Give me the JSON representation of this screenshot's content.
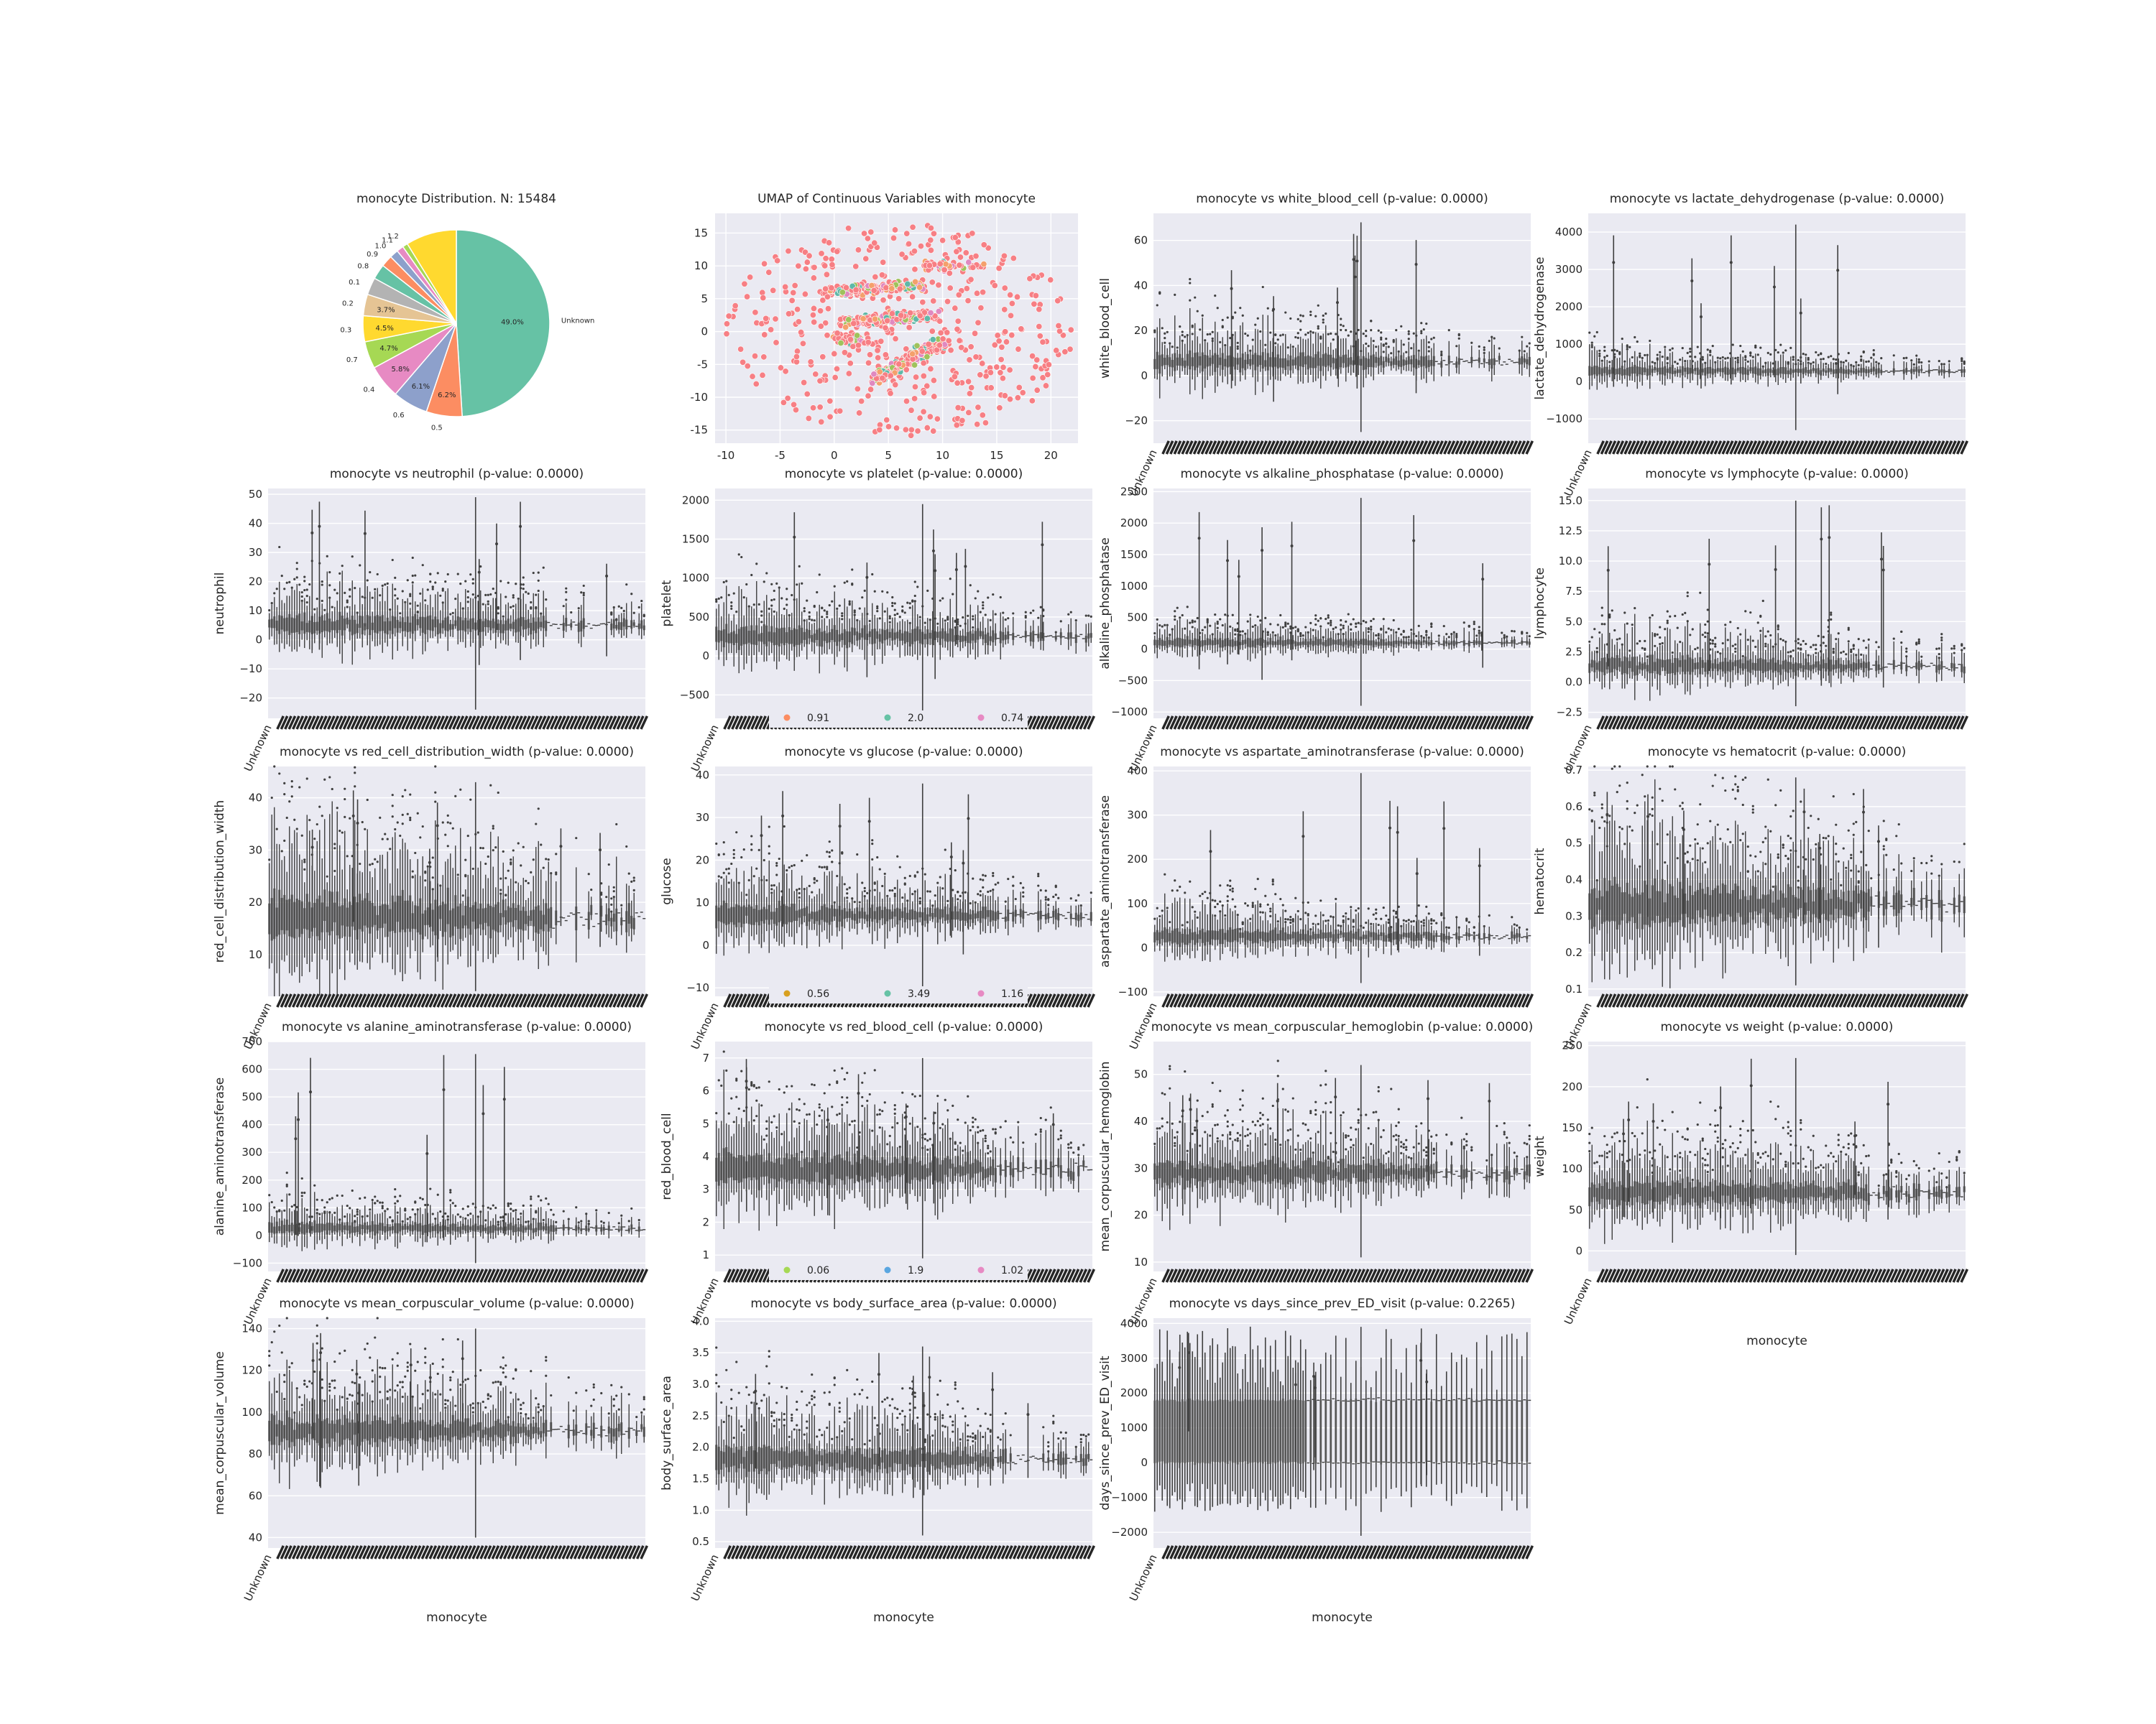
{
  "chart_data": [
    {
      "type": "pie",
      "title": "monocyte Distribution. N: 15484",
      "slices": [
        {
          "label": "Unknown",
          "value": 49.0,
          "pct_label": "49.0%",
          "color": "#66c2a5"
        },
        {
          "label": "0.5",
          "value": 6.2,
          "pct_label": "6.2%",
          "color": "#fc8d62"
        },
        {
          "label": "0.6",
          "value": 6.1,
          "pct_label": "6.1%",
          "color": "#8da0cb"
        },
        {
          "label": "0.4",
          "value": 5.8,
          "pct_label": "5.8%",
          "color": "#e78ac3"
        },
        {
          "label": "0.7",
          "value": 4.7,
          "pct_label": "4.7%",
          "color": "#a6d854"
        },
        {
          "label": "0.3",
          "value": 4.5,
          "pct_label": "4.5%",
          "color": "#ffd92f"
        },
        {
          "label": "0.2",
          "value": 3.7,
          "pct_label": "3.7%",
          "color": "#e5c494"
        },
        {
          "label": "0.1",
          "value": 3.0,
          "pct_label": "",
          "color": "#b3b3b3"
        },
        {
          "label": "0.8",
          "value": 2.6,
          "pct_label": "",
          "color": "#66c2a5"
        },
        {
          "label": "0.9",
          "value": 2.0,
          "pct_label": "",
          "color": "#fc8d62"
        },
        {
          "label": "1.0",
          "value": 1.5,
          "pct_label": "",
          "color": "#8da0cb"
        },
        {
          "label": "1.1",
          "value": 1.2,
          "pct_label": "",
          "color": "#e78ac3"
        },
        {
          "label": "1.2",
          "value": 0.9,
          "pct_label": "",
          "color": "#a6d854"
        },
        {
          "label": "",
          "value": 8.8,
          "pct_label": "",
          "color": "#ffd92f"
        }
      ]
    },
    {
      "type": "scatter",
      "title": "UMAP of Continuous Variables with monocyte",
      "xlim": [
        -11,
        22.5
      ],
      "ylim": [
        -17,
        18
      ],
      "xticks": [
        -10,
        -5,
        0,
        5,
        10,
        15,
        20
      ],
      "yticks": [
        -15,
        -10,
        -5,
        0,
        5,
        10,
        15
      ],
      "legend_rows": [
        {
          "values": [
            "0.91",
            "2.0",
            "0.74"
          ],
          "colors": [
            "#fc8d62",
            "#66c2a5",
            "#e78ac3"
          ]
        },
        {
          "values": [
            "0.56",
            "3.49",
            "1.16"
          ],
          "colors": [
            "#d8a020",
            "#66c2a5",
            "#e78ac3"
          ]
        },
        {
          "values": [
            "0.06",
            "1.9",
            "1.02"
          ],
          "colors": [
            "#a6d854",
            "#5aa6e0",
            "#e78ac3"
          ]
        }
      ],
      "colors": [
        "#f77f84",
        "#f4a06c",
        "#9fc25c",
        "#5fb8a8",
        "#e089c0"
      ]
    },
    {
      "type": "box",
      "title": "monocyte vs white_blood_cell (p-value: 0.0000)",
      "ylabel": "white_blood_cell",
      "xlabel": "",
      "ylim": [
        -30,
        72
      ],
      "yticks": [
        -20,
        0,
        20,
        40,
        60
      ],
      "yticklabels": [
        "−20",
        "0",
        "20",
        "40",
        "60"
      ],
      "center": 6,
      "spread": 5,
      "outlier_max": 68,
      "outlier_min": -25,
      "first_tick": "Unknown"
    },
    {
      "type": "box",
      "title": "monocyte vs lactate_dehydrogenase (p-value: 0.0000)",
      "ylabel": "lactate_dehydrogenase",
      "xlabel": "",
      "ylim": [
        -1650,
        4500
      ],
      "yticks": [
        -1000,
        0,
        1000,
        2000,
        3000,
        4000
      ],
      "yticklabels": [
        "−1000",
        "0",
        "1000",
        "2000",
        "3000",
        "4000"
      ],
      "center": 280,
      "spread": 150,
      "outlier_max": 4200,
      "outlier_min": -1300,
      "first_tick": "Unknown"
    },
    {
      "type": "box",
      "title": "monocyte vs neutrophil (p-value: 0.0000)",
      "ylabel": "neutrophil",
      "xlabel": "",
      "ylim": [
        -27,
        52
      ],
      "yticks": [
        -20,
        -10,
        0,
        10,
        20,
        30,
        40,
        50
      ],
      "yticklabels": [
        "−20",
        "−10",
        "0",
        "10",
        "20",
        "30",
        "40",
        "50"
      ],
      "center": 5,
      "spread": 4,
      "outlier_max": 49,
      "outlier_min": -24,
      "first_tick": "Unknown"
    },
    {
      "type": "box",
      "title": "monocyte vs platelet (p-value: 0.0000)",
      "ylabel": "platelet",
      "xlabel": "",
      "ylim": [
        -800,
        2150
      ],
      "yticks": [
        -500,
        0,
        500,
        1000,
        1500,
        2000
      ],
      "yticklabels": [
        "−500",
        "0",
        "500",
        "1000",
        "1500",
        "2000"
      ],
      "center": 250,
      "spread": 150,
      "outlier_max": 1950,
      "outlier_min": -700,
      "first_tick": "Unknown"
    },
    {
      "type": "box",
      "title": "monocyte vs alkaline_phosphatase (p-value: 0.0000)",
      "ylabel": "alkaline_phosphatase",
      "xlabel": "",
      "ylim": [
        -1100,
        2550
      ],
      "yticks": [
        -1000,
        -500,
        0,
        500,
        1000,
        1500,
        2000,
        2500
      ],
      "yticklabels": [
        "−1000",
        "−500",
        "0",
        "500",
        "1000",
        "1500",
        "2000",
        "2500"
      ],
      "center": 100,
      "spread": 90,
      "outlier_max": 2400,
      "outlier_min": -900,
      "first_tick": "Unknown"
    },
    {
      "type": "box",
      "title": "monocyte vs lymphocyte (p-value: 0.0000)",
      "ylabel": "lymphocyte",
      "xlabel": "",
      "ylim": [
        -3,
        16
      ],
      "yticks": [
        -2.5,
        0.0,
        2.5,
        5.0,
        7.5,
        10.0,
        12.5,
        15.0
      ],
      "yticklabels": [
        "−2.5",
        "0.0",
        "2.5",
        "5.0",
        "7.5",
        "10.0",
        "12.5",
        "15.0"
      ],
      "center": 1.3,
      "spread": 0.9,
      "outlier_max": 15,
      "outlier_min": -2,
      "first_tick": "Unknown"
    },
    {
      "type": "box",
      "title": "monocyte vs red_cell_distribution_width (p-value: 0.0000)",
      "ylabel": "red_cell_distribution_width",
      "xlabel": "",
      "ylim": [
        2,
        46
      ],
      "yticks": [
        10,
        20,
        30,
        40
      ],
      "yticklabels": [
        "10",
        "20",
        "30",
        "40"
      ],
      "center": 17,
      "spread": 5,
      "outlier_max": 43,
      "outlier_min": 3,
      "first_tick": "Unknown"
    },
    {
      "type": "box",
      "title": "monocyte vs glucose (p-value: 0.0000)",
      "ylabel": "glucose",
      "xlabel": "",
      "ylim": [
        -12,
        42
      ],
      "yticks": [
        -10,
        0,
        10,
        20,
        30,
        40
      ],
      "yticklabels": [
        "−10",
        "0",
        "10",
        "20",
        "30",
        "40"
      ],
      "center": 7,
      "spread": 3,
      "outlier_max": 38,
      "outlier_min": -10,
      "first_tick": "Unknown"
    },
    {
      "type": "box",
      "title": "monocyte vs aspartate_aminotransferase (p-value: 0.0000)",
      "ylabel": "aspartate_aminotransferase",
      "xlabel": "",
      "ylim": [
        -110,
        410
      ],
      "yticks": [
        -100,
        0,
        100,
        200,
        300,
        400
      ],
      "yticklabels": [
        "−100",
        "0",
        "100",
        "200",
        "300",
        "400"
      ],
      "center": 25,
      "spread": 20,
      "outlier_max": 395,
      "outlier_min": -80,
      "first_tick": "Unknown"
    },
    {
      "type": "box",
      "title": "monocyte vs hematocrit (p-value: 0.0000)",
      "ylabel": "hematocrit",
      "xlabel": "",
      "ylim": [
        0.08,
        0.71
      ],
      "yticks": [
        0.1,
        0.2,
        0.3,
        0.4,
        0.5,
        0.6,
        0.7
      ],
      "yticklabels": [
        "0.1",
        "0.2",
        "0.3",
        "0.4",
        "0.5",
        "0.6",
        "0.7"
      ],
      "center": 0.33,
      "spread": 0.07,
      "outlier_max": 0.68,
      "outlier_min": 0.11,
      "first_tick": "Unknown"
    },
    {
      "type": "box",
      "title": "monocyte vs alanine_aminotransferase (p-value: 0.0000)",
      "ylabel": "alanine_aminotransferase",
      "xlabel": "",
      "ylim": [
        -130,
        700
      ],
      "yticks": [
        -100,
        0,
        100,
        200,
        300,
        400,
        500,
        600,
        700
      ],
      "yticklabels": [
        "−100",
        "0",
        "100",
        "200",
        "300",
        "400",
        "500",
        "600",
        "700"
      ],
      "center": 25,
      "spread": 25,
      "outlier_max": 655,
      "outlier_min": -100,
      "first_tick": "Unknown"
    },
    {
      "type": "box",
      "title": "monocyte vs red_blood_cell (p-value: 0.0000)",
      "ylabel": "red_blood_cell",
      "xlabel": "",
      "ylim": [
        0.5,
        7.5
      ],
      "yticks": [
        1,
        2,
        3,
        4,
        5,
        6,
        7
      ],
      "yticklabels": [
        "1",
        "2",
        "3",
        "4",
        "5",
        "6",
        "7"
      ],
      "center": 3.6,
      "spread": 0.6,
      "outlier_max": 7,
      "outlier_min": 0.9,
      "first_tick": "Unknown"
    },
    {
      "type": "box",
      "title": "monocyte vs mean_corpuscular_hemoglobin (p-value: 0.0000)",
      "ylabel": "mean_corpuscular_hemoglobin",
      "xlabel": "",
      "ylim": [
        8,
        57
      ],
      "yticks": [
        10,
        20,
        30,
        40,
        50
      ],
      "yticklabels": [
        "10",
        "20",
        "30",
        "40",
        "50"
      ],
      "center": 29,
      "spread": 3.5,
      "outlier_max": 52,
      "outlier_min": 11,
      "first_tick": "Unknown"
    },
    {
      "type": "box",
      "title": "monocyte vs weight (p-value: 0.0000)",
      "ylabel": "weight",
      "xlabel": "monocyte",
      "ylim": [
        -25,
        255
      ],
      "yticks": [
        0,
        50,
        100,
        150,
        200,
        250
      ],
      "yticklabels": [
        "0",
        "50",
        "100",
        "150",
        "200",
        "250"
      ],
      "center": 70,
      "spread": 20,
      "outlier_max": 235,
      "outlier_min": -5,
      "first_tick": "Unknown"
    },
    {
      "type": "box",
      "title": "monocyte vs mean_corpuscular_volume (p-value: 0.0000)",
      "ylabel": "mean_corpuscular_volume",
      "xlabel": "monocyte",
      "ylim": [
        35,
        145
      ],
      "yticks": [
        40,
        60,
        80,
        100,
        120,
        140
      ],
      "yticklabels": [
        "40",
        "60",
        "80",
        "100",
        "120",
        "140"
      ],
      "center": 91,
      "spread": 8,
      "outlier_max": 140,
      "outlier_min": 40,
      "first_tick": "Unknown"
    },
    {
      "type": "box",
      "title": "monocyte vs body_surface_area (p-value: 0.0000)",
      "ylabel": "body_surface_area",
      "xlabel": "monocyte",
      "ylim": [
        0.4,
        4.05
      ],
      "yticks": [
        0.5,
        1.0,
        1.5,
        2.0,
        2.5,
        3.0,
        3.5,
        4.0
      ],
      "yticklabels": [
        "0.5",
        "1.0",
        "1.5",
        "2.0",
        "2.5",
        "3.0",
        "3.5",
        "4.0"
      ],
      "center": 1.8,
      "spread": 0.25,
      "outlier_max": 3.6,
      "outlier_min": 0.6,
      "first_tick": "Unknown"
    },
    {
      "type": "box",
      "title": "monocyte vs days_since_prev_ED_visit (p-value: 0.2265)",
      "ylabel": "days_since_prev_ED_visit",
      "xlabel": "monocyte",
      "ylim": [
        -2450,
        4150
      ],
      "yticks": [
        -2000,
        -1000,
        0,
        1000,
        2000,
        3000,
        4000
      ],
      "yticklabels": [
        "−2000",
        "−1000",
        "0",
        "1000",
        "2000",
        "3000",
        "4000"
      ],
      "center": 900,
      "spread": 900,
      "outlier_max": 3900,
      "outlier_min": -2100,
      "first_tick": "Unknown",
      "mode": "wide"
    }
  ]
}
